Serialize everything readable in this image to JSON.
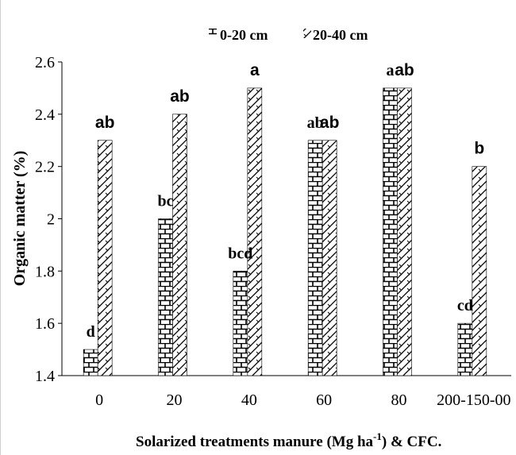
{
  "chart_data": {
    "type": "bar",
    "categories": [
      "0",
      "20",
      "40",
      "60",
      "80",
      "200-150-00"
    ],
    "series": [
      {
        "name": "0-20 cm",
        "values": [
          1.5,
          2.0,
          1.8,
          2.3,
          2.5,
          1.6
        ],
        "labels": [
          "d",
          "bc",
          "bcd",
          "ab",
          "a",
          "cd"
        ],
        "pattern": "brick"
      },
      {
        "name": "20-40 cm",
        "values": [
          2.3,
          2.4,
          2.5,
          2.3,
          2.5,
          2.2
        ],
        "labels": [
          "ab",
          "ab",
          "a",
          "ab",
          "ab",
          "b"
        ],
        "pattern": "diagonal-hatch"
      }
    ],
    "ylim": [
      1.4,
      2.6
    ],
    "yticks": [
      "1.4",
      "1.6",
      "1.8",
      "2",
      "2.2",
      "2.4",
      "2.6"
    ],
    "ylabel": "Organic matter (%)",
    "xlabel": "Solarized treatments manure (Mg ha",
    "xlabel_sup": "-1",
    "xlabel_tail": ") & CFC.",
    "legend_position": "top-center",
    "grid": false
  }
}
